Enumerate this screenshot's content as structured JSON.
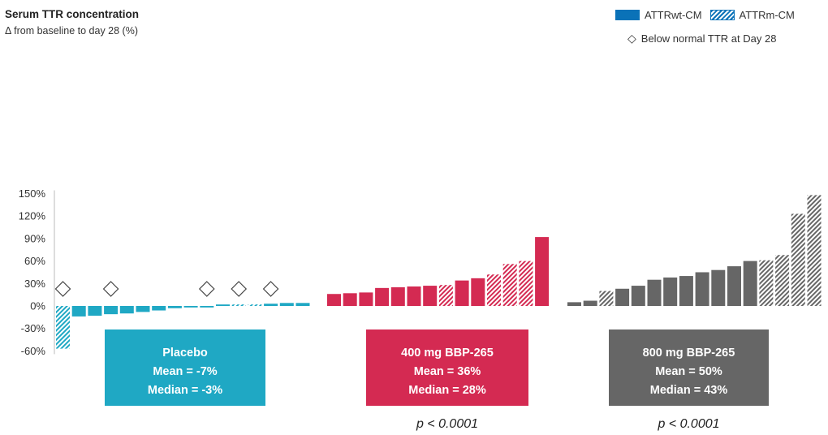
{
  "chart_data": {
    "type": "bar",
    "title": "Serum TTR concentration",
    "subtitle": "Δ from baseline to day 28 (%)",
    "ylim": [
      -60,
      150
    ],
    "yticks": [
      -60,
      -30,
      0,
      30,
      60,
      90,
      120,
      150
    ],
    "ytick_labels": [
      "-60%",
      "-30%",
      "0%",
      "30%",
      "60%",
      "90%",
      "120%",
      "150%"
    ],
    "legend": {
      "wt_label": "ATTRwt-CM",
      "m_label": "ATTRm-CM",
      "below_label": "Below normal TTR at Day 28",
      "placement": "top-right"
    },
    "groups": [
      {
        "name": "Placebo",
        "color": "#1fa8c4",
        "box_lines": [
          "Placebo",
          "Mean = -7%",
          "Median = -3%"
        ],
        "p_value": "",
        "bars": [
          {
            "value": -57,
            "hatched": true,
            "below_normal": true
          },
          {
            "value": -14,
            "hatched": false,
            "below_normal": false
          },
          {
            "value": -13,
            "hatched": false,
            "below_normal": false
          },
          {
            "value": -11,
            "hatched": false,
            "below_normal": true
          },
          {
            "value": -10,
            "hatched": false,
            "below_normal": false
          },
          {
            "value": -8,
            "hatched": false,
            "below_normal": false
          },
          {
            "value": -6,
            "hatched": false,
            "below_normal": false
          },
          {
            "value": -3,
            "hatched": false,
            "below_normal": false
          },
          {
            "value": -2,
            "hatched": false,
            "below_normal": false
          },
          {
            "value": -2,
            "hatched": false,
            "below_normal": true
          },
          {
            "value": 2,
            "hatched": false,
            "below_normal": false
          },
          {
            "value": 2,
            "hatched": true,
            "below_normal": true
          },
          {
            "value": 2,
            "hatched": true,
            "below_normal": false
          },
          {
            "value": 3,
            "hatched": false,
            "below_normal": true
          },
          {
            "value": 4,
            "hatched": false,
            "below_normal": false
          },
          {
            "value": 4,
            "hatched": false,
            "below_normal": false
          }
        ]
      },
      {
        "name": "400 mg BBP-265",
        "color": "#d42a52",
        "box_lines": [
          "400 mg BBP-265",
          "Mean = 36%",
          "Median = 28%"
        ],
        "p_value": "p < 0.0001",
        "bars": [
          {
            "value": 16,
            "hatched": false
          },
          {
            "value": 17,
            "hatched": false
          },
          {
            "value": 18,
            "hatched": false
          },
          {
            "value": 24,
            "hatched": false
          },
          {
            "value": 25,
            "hatched": false
          },
          {
            "value": 26,
            "hatched": false
          },
          {
            "value": 27,
            "hatched": false
          },
          {
            "value": 28,
            "hatched": true
          },
          {
            "value": 34,
            "hatched": false
          },
          {
            "value": 37,
            "hatched": false
          },
          {
            "value": 42,
            "hatched": true
          },
          {
            "value": 56,
            "hatched": true
          },
          {
            "value": 60,
            "hatched": true
          },
          {
            "value": 92,
            "hatched": false
          }
        ]
      },
      {
        "name": "800 mg BBP-265",
        "color": "#666666",
        "box_lines": [
          "800 mg BBP-265",
          "Mean = 50%",
          "Median = 43%"
        ],
        "p_value": "p < 0.0001",
        "bars": [
          {
            "value": 5,
            "hatched": false
          },
          {
            "value": 7,
            "hatched": false
          },
          {
            "value": 20,
            "hatched": true
          },
          {
            "value": 23,
            "hatched": false
          },
          {
            "value": 27,
            "hatched": false
          },
          {
            "value": 35,
            "hatched": false
          },
          {
            "value": 38,
            "hatched": false
          },
          {
            "value": 40,
            "hatched": false
          },
          {
            "value": 45,
            "hatched": false
          },
          {
            "value": 48,
            "hatched": false
          },
          {
            "value": 53,
            "hatched": false
          },
          {
            "value": 60,
            "hatched": false
          },
          {
            "value": 61,
            "hatched": true
          },
          {
            "value": 68,
            "hatched": true
          },
          {
            "value": 123,
            "hatched": true
          },
          {
            "value": 148,
            "hatched": true
          }
        ]
      }
    ]
  }
}
